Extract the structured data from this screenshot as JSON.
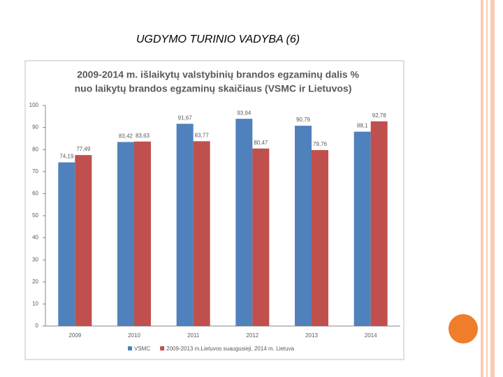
{
  "slide_title": "UGDYMO TURINIO VADYBA (6)",
  "chart_data": {
    "type": "bar",
    "title": [
      "2009-2014 m. išlaikytų valstybinių brandos egzaminų dalis %",
      "nuo laikytų brandos egzaminų skaičiaus (VSMC ir Lietuvos)"
    ],
    "categories": [
      "2009",
      "2010",
      "2011",
      "2012",
      "2013",
      "2014"
    ],
    "series": [
      {
        "name": "VSMC",
        "color": "#4f81bd",
        "values": [
          74.19,
          83.42,
          91.67,
          93.94,
          90.79,
          88.1
        ],
        "value_labels": [
          "74,19",
          "83,42",
          "91,67",
          "93,94",
          "90,79",
          "88,1"
        ]
      },
      {
        "name": "2009-2013 m.Lietuvos suaugusieji, 2014 m. Lietuva",
        "color": "#c0504d",
        "values": [
          77.49,
          83.63,
          83.77,
          80.47,
          79.76,
          92.78
        ],
        "value_labels": [
          "77,49",
          "83,63",
          "83,77",
          "80,47",
          "79,76",
          "92,78"
        ]
      }
    ],
    "ylim": [
      0,
      100
    ],
    "yticks": [
      0,
      10,
      20,
      30,
      40,
      50,
      60,
      70,
      80,
      90,
      100
    ],
    "grid": false,
    "legend": "bottom"
  }
}
